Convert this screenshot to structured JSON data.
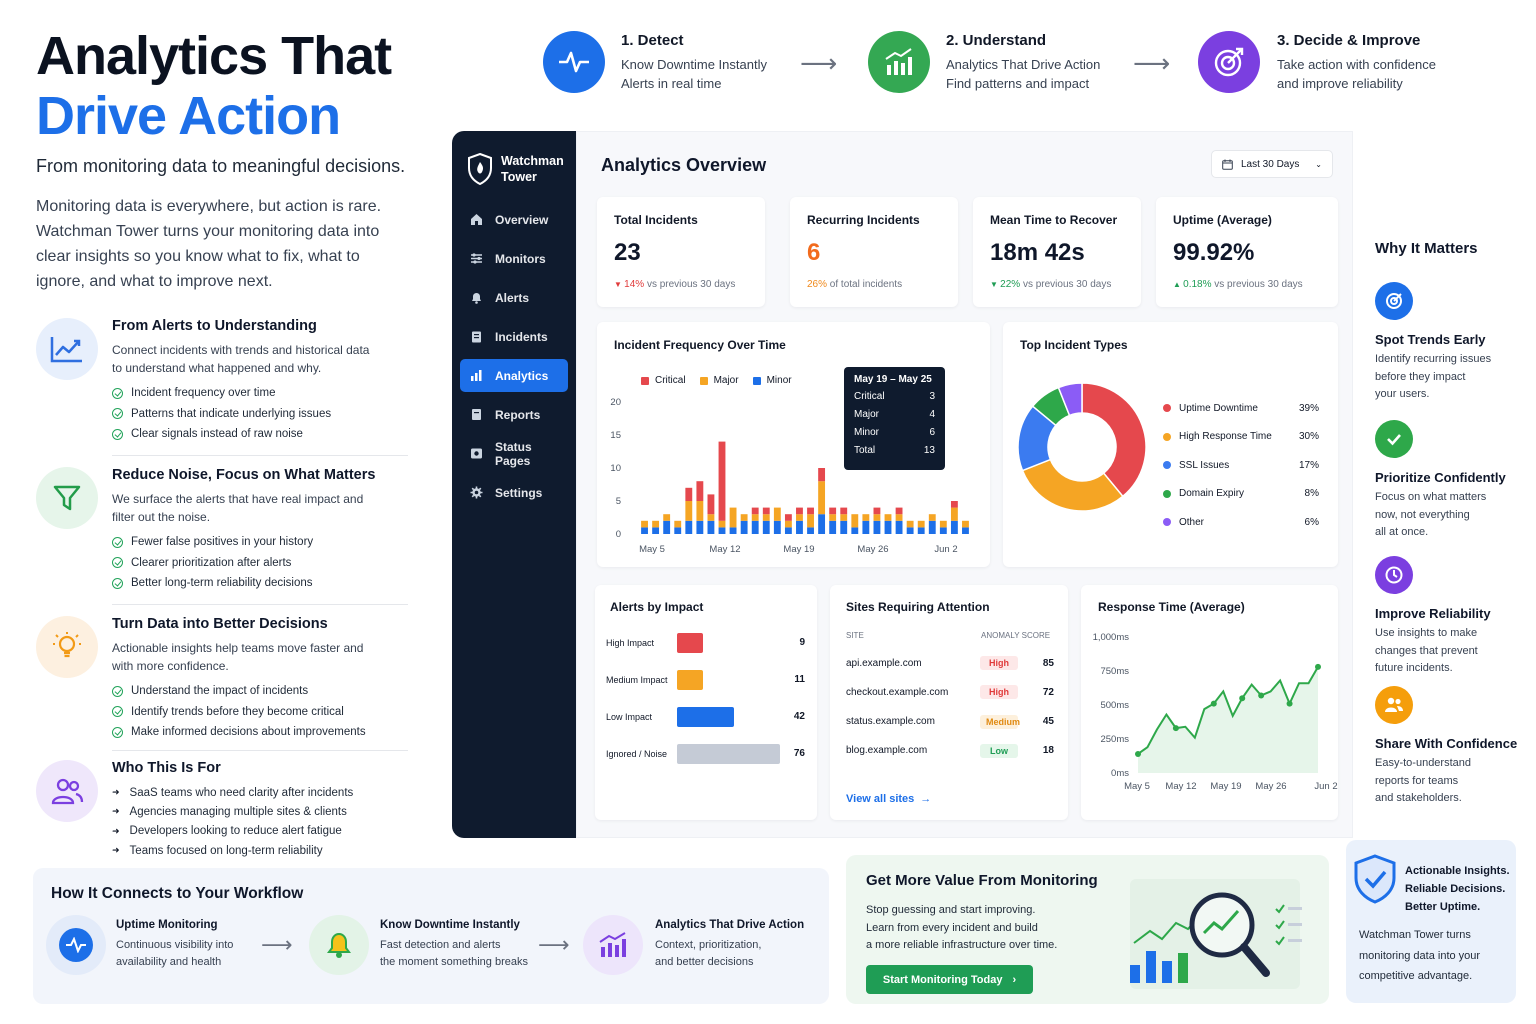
{
  "hero": {
    "title_line1": "Analytics That",
    "title_line2": "Drive Action",
    "subtitle": "From monitoring data to meaningful decisions.",
    "paragraph": "Monitoring data is everywhere, but action is rare. Watchman Tower turns your monitoring data into clear insights so you know what to fix, what to ignore, and what to improve next."
  },
  "features": [
    {
      "icon": "trend-up-icon",
      "title": "From Alerts to Understanding",
      "desc": "Connect incidents with trends and historical data to understand what happened and why.",
      "items": [
        "Incident frequency over time",
        "Patterns that indicate underlying issues",
        "Clear signals instead of raw noise"
      ]
    },
    {
      "icon": "filter-icon",
      "title": "Reduce Noise, Focus on What Matters",
      "desc": "We surface the alerts that have real impact and filter out the noise.",
      "items": [
        "Fewer false positives in your history",
        "Clearer prioritization after alerts",
        "Better long-term reliability decisions"
      ]
    },
    {
      "icon": "lightbulb-icon",
      "title": "Turn Data into Better Decisions",
      "desc": "Actionable insights help teams move faster and with more confidence.",
      "items": [
        "Understand the impact of incidents",
        "Identify trends before they become critical",
        "Make informed decisions about improvements"
      ]
    },
    {
      "icon": "users-icon",
      "title": "Who This Is For",
      "desc": "",
      "items": [
        "SaaS teams who need clarity after incidents",
        "Agencies managing multiple sites & clients",
        "Developers looking to reduce alert fatigue",
        "Teams focused on long-term reliability"
      ]
    }
  ],
  "steps": [
    {
      "title": "1. Detect",
      "line1": "Know Downtime Instantly",
      "line2": "Alerts in real time",
      "icon": "pulse-icon",
      "color": "#1d6fe8"
    },
    {
      "title": "2. Understand",
      "line1": "Analytics That Drive Action",
      "line2": "Find patterns and impact",
      "icon": "bar-chart-icon",
      "color": "#2ea84a"
    },
    {
      "title": "3. Decide & Improve",
      "line1": "Take action with confidence",
      "line2": "and improve reliability",
      "icon": "target-icon",
      "color": "#7b3fe0"
    }
  ],
  "sidebar": {
    "brand_line1": "Watchman",
    "brand_line2": "Tower",
    "items": [
      {
        "label": "Overview",
        "icon": "home-icon"
      },
      {
        "label": "Monitors",
        "icon": "sliders-icon"
      },
      {
        "label": "Alerts",
        "icon": "bell-icon"
      },
      {
        "label": "Incidents",
        "icon": "clipboard-icon"
      },
      {
        "label": "Analytics",
        "icon": "bar-chart-icon"
      },
      {
        "label": "Reports",
        "icon": "document-icon"
      },
      {
        "label": "Status Pages",
        "icon": "status-icon"
      },
      {
        "label": "Settings",
        "icon": "gear-icon"
      }
    ],
    "active": "Analytics"
  },
  "overview": {
    "title": "Analytics Overview",
    "date_range": "Last 30 Days",
    "kpis": [
      {
        "label": "Total Incidents",
        "value": "23",
        "delta": "14%",
        "delta_text": "vs previous 30 days",
        "trend": "down",
        "value_color": "#0f172a",
        "delta_color": "#e03b3b"
      },
      {
        "label": "Recurring Incidents",
        "value": "6",
        "delta": "26%",
        "delta_text": "of total incidents",
        "trend": "none",
        "value_color": "#f26b1d",
        "delta_color": "#f08a1d"
      },
      {
        "label": "Mean Time to Recover",
        "value": "18m 42s",
        "delta": "22%",
        "delta_text": "vs previous 30 days",
        "trend": "down",
        "value_color": "#0f172a",
        "delta_color": "#1f9d55"
      },
      {
        "label": "Uptime (Average)",
        "value": "99.92%",
        "delta": "0.18%",
        "delta_text": "vs previous 30 days",
        "trend": "up",
        "value_color": "#0f172a",
        "delta_color": "#1f9d55"
      }
    ]
  },
  "incident_freq": {
    "title": "Incident Frequency Over Time",
    "legend": [
      {
        "name": "Critical",
        "color": "#e5484d"
      },
      {
        "name": "Major",
        "color": "#f5a524"
      },
      {
        "name": "Minor",
        "color": "#1d6fe8"
      }
    ],
    "tooltip": {
      "range": "May 19 – May 25",
      "rows": [
        [
          "Critical",
          "3"
        ],
        [
          "Major",
          "4"
        ],
        [
          "Minor",
          "6"
        ],
        [
          "Total",
          "13"
        ]
      ]
    }
  },
  "top_types": {
    "title": "Top Incident Types",
    "items": [
      {
        "name": "Uptime Downtime",
        "pct": "39%",
        "value": 39,
        "color": "#e5484d"
      },
      {
        "name": "High Response Time",
        "pct": "30%",
        "value": 30,
        "color": "#f5a524"
      },
      {
        "name": "SSL Issues",
        "pct": "17%",
        "value": 17,
        "color": "#3b7bf0"
      },
      {
        "name": "Domain Expiry",
        "pct": "8%",
        "value": 8,
        "color": "#2ea84a"
      },
      {
        "name": "Other",
        "pct": "6%",
        "value": 6,
        "color": "#8b5cf6"
      }
    ]
  },
  "alerts_impact": {
    "title": "Alerts by Impact",
    "rows": [
      {
        "label": "High Impact",
        "value": "9",
        "n": 9,
        "color": "#e5484d"
      },
      {
        "label": "Medium Impact",
        "value": "11",
        "n": 11,
        "color": "#f5a524"
      },
      {
        "label": "Low Impact",
        "value": "42",
        "n": 42,
        "color": "#1d6fe8"
      },
      {
        "label": "Ignored / Noise",
        "value": "76",
        "n": 76,
        "color": "#c5cbd6"
      }
    ]
  },
  "sites": {
    "title": "Sites Requiring Attention",
    "col_site": "SITE",
    "col_score": "ANOMALY SCORE",
    "rows": [
      {
        "site": "api.example.com",
        "level": "High",
        "score": "85",
        "bg": "#fde8e8",
        "fg": "#e03b3b"
      },
      {
        "site": "checkout.example.com",
        "level": "High",
        "score": "72",
        "bg": "#fde8e8",
        "fg": "#e03b3b"
      },
      {
        "site": "status.example.com",
        "level": "Medium",
        "score": "45",
        "bg": "#fdf0dc",
        "fg": "#e08a12"
      },
      {
        "site": "blog.example.com",
        "level": "Low",
        "score": "18",
        "bg": "#e5f6ea",
        "fg": "#1f9d55"
      }
    ],
    "link": "View all sites"
  },
  "response_time": {
    "title": "Response Time (Average)"
  },
  "why": {
    "title": "Why It Matters",
    "items": [
      {
        "title": "Spot Trends Early",
        "desc": [
          "Identify recurring issues",
          "before they impact",
          "your users."
        ],
        "icon": "target-icon",
        "color": "#1d6fe8"
      },
      {
        "title": "Prioritize Confidently",
        "desc": [
          "Focus on what matters",
          "now, not everything",
          "all at once."
        ],
        "icon": "check-icon",
        "color": "#2ea84a"
      },
      {
        "title": "Improve Reliability",
        "desc": [
          "Use insights to make",
          "changes that prevent",
          "future incidents."
        ],
        "icon": "clock-icon",
        "color": "#7b3fe0"
      },
      {
        "title": "Share With Confidence",
        "desc": [
          "Easy-to-understand",
          "reports for teams",
          "and stakeholders."
        ],
        "icon": "users-icon",
        "color": "#f59e0b"
      }
    ]
  },
  "workflow": {
    "title": "How It Connects to Your Workflow",
    "items": [
      {
        "title": "Uptime Monitoring",
        "line1": "Continuous visibility into",
        "line2": "availability and health",
        "icon": "pulse-icon"
      },
      {
        "title": "Know Downtime Instantly",
        "line1": "Fast detection and alerts",
        "line2": "the moment something breaks",
        "icon": "bell-icon"
      },
      {
        "title": "Analytics That Drive Action",
        "line1": "Context, prioritization,",
        "line2": "and better decisions",
        "icon": "bar-chart-icon"
      }
    ]
  },
  "cta": {
    "title": "Get More Value From Monitoring",
    "line1": "Stop guessing and start improving.",
    "line2": "Learn from every incident and build",
    "line3": "a more reliable infrastructure over time.",
    "button": "Start Monitoring Today"
  },
  "badge": {
    "line1": "Actionable Insights.",
    "line2": "Reliable Decisions.",
    "line3": "Better Uptime.",
    "p1": "Watchman Tower turns",
    "p2": "monitoring data into your",
    "p3": "competitive advantage."
  },
  "chart_data": [
    {
      "type": "bar",
      "title": "Incident Frequency Over Time",
      "stacked": true,
      "ylim": [
        0,
        20
      ],
      "yticks": [
        "0",
        "5",
        "10",
        "15",
        "20"
      ],
      "xticks": [
        "May 5",
        "May 12",
        "May 19",
        "May 26",
        "Jun 2"
      ],
      "series": [
        {
          "name": "Minor",
          "values": [
            1,
            1,
            2,
            1,
            2,
            2,
            2,
            1,
            1,
            2,
            2,
            2,
            2,
            1,
            2,
            1,
            3,
            2,
            2,
            1,
            2,
            2,
            2,
            2,
            1,
            1,
            2,
            1,
            2,
            1
          ]
        },
        {
          "name": "Major",
          "values": [
            1,
            1,
            1,
            1,
            3,
            3,
            1,
            1,
            3,
            1,
            1,
            1,
            2,
            1,
            1,
            2,
            5,
            1,
            1,
            2,
            1,
            1,
            1,
            1,
            1,
            1,
            1,
            1,
            2,
            1
          ]
        },
        {
          "name": "Critical",
          "values": [
            0,
            0,
            0,
            0,
            2,
            3,
            3,
            12,
            0,
            0,
            1,
            1,
            0,
            1,
            1,
            1,
            2,
            1,
            1,
            0,
            0,
            1,
            0,
            1,
            0,
            0,
            0,
            0,
            1,
            0
          ]
        }
      ]
    },
    {
      "type": "pie",
      "title": "Top Incident Types",
      "labels": [
        "Uptime Downtime",
        "High Response Time",
        "SSL Issues",
        "Domain Expiry",
        "Other"
      ],
      "values": [
        39,
        30,
        17,
        8,
        6
      ]
    },
    {
      "type": "bar",
      "title": "Alerts by Impact",
      "orientation": "horizontal",
      "categories": [
        "High Impact",
        "Medium Impact",
        "Low Impact",
        "Ignored / Noise"
      ],
      "values": [
        9,
        11,
        42,
        76
      ]
    },
    {
      "type": "area",
      "title": "Response Time (Average)",
      "yticks": [
        "0ms",
        "250ms",
        "500ms",
        "750ms",
        "1,000ms"
      ],
      "ylim": [
        0,
        1000
      ],
      "xticks": [
        "May 5",
        "May 12",
        "May 19",
        "May 26",
        "Jun 2"
      ],
      "values": [
        140,
        190,
        320,
        430,
        330,
        340,
        260,
        470,
        510,
        600,
        420,
        550,
        650,
        570,
        600,
        680,
        510,
        660,
        660,
        780
      ]
    }
  ]
}
